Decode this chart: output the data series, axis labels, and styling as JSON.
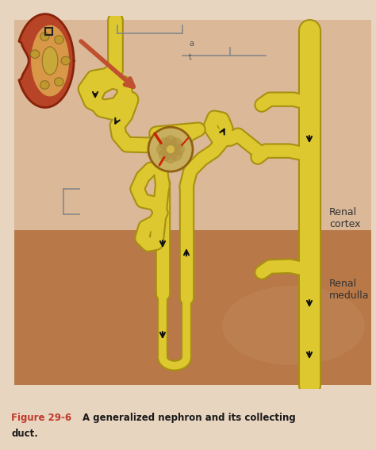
{
  "fig_width": 4.74,
  "fig_height": 5.67,
  "dpi": 100,
  "bg_outer": "#e8d5c0",
  "cortex_color": "#d4a888",
  "medulla_color": "#b8845a",
  "tube_color": "#ddc830",
  "tube_edge": "#a89010",
  "renal_cortex_label": "Renal\ncortex",
  "renal_medulla_label": "Renal\nmedulla",
  "figure_label": "Figure 29-6",
  "figure_desc": "A generalized nephron and its collecting",
  "figure_desc2": "duct.",
  "label_color_figure": "#c0392b",
  "label_color_desc": "#1a1a1a"
}
